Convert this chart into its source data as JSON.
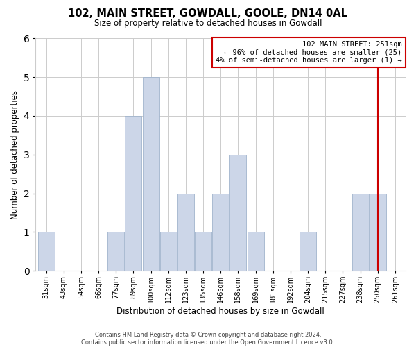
{
  "title": "102, MAIN STREET, GOWDALL, GOOLE, DN14 0AL",
  "subtitle": "Size of property relative to detached houses in Gowdall",
  "xlabel": "Distribution of detached houses by size in Gowdall",
  "ylabel": "Number of detached properties",
  "footer_lines": [
    "Contains HM Land Registry data © Crown copyright and database right 2024.",
    "Contains public sector information licensed under the Open Government Licence v3.0."
  ],
  "bin_labels": [
    "31sqm",
    "43sqm",
    "54sqm",
    "66sqm",
    "77sqm",
    "89sqm",
    "100sqm",
    "112sqm",
    "123sqm",
    "135sqm",
    "146sqm",
    "158sqm",
    "169sqm",
    "181sqm",
    "192sqm",
    "204sqm",
    "215sqm",
    "227sqm",
    "238sqm",
    "250sqm",
    "261sqm"
  ],
  "bar_values": [
    1,
    0,
    0,
    0,
    1,
    4,
    5,
    1,
    2,
    1,
    2,
    3,
    1,
    0,
    0,
    1,
    0,
    0,
    2,
    2,
    0
  ],
  "bar_color": "#ccd6e8",
  "bar_edge_color": "#a0b4cc",
  "grid_color": "#cccccc",
  "background_color": "#ffffff",
  "vline_x_index": 19,
  "vline_color": "#cc0000",
  "legend_text_line1": "102 MAIN STREET: 251sqm",
  "legend_text_line2": "← 96% of detached houses are smaller (25)",
  "legend_text_line3": "4% of semi-detached houses are larger (1) →",
  "legend_box_color": "#cc0000",
  "legend_bg_color": "#ffffff",
  "ylim": [
    0,
    6
  ],
  "yticks": [
    0,
    1,
    2,
    3,
    4,
    5,
    6
  ]
}
